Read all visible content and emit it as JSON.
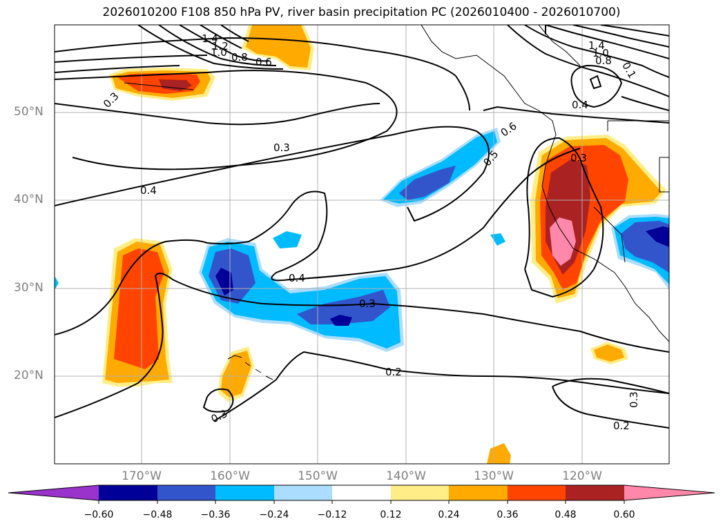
{
  "title": "2026010200 F108 850 hPa PV, river basin precipitation PC (2026010400 - 2026010700)",
  "lat_labels": [
    "50°N",
    "40°N",
    "30°N",
    "20°N"
  ],
  "lon_labels": [
    "170°W",
    "160°W",
    "150°W",
    "140°W",
    "130°W",
    "120°W"
  ],
  "colorbar": {
    "ticks": [
      "−0.60",
      "−0.48",
      "−0.36",
      "−0.24",
      "−0.12",
      "0.12",
      "0.24",
      "0.36",
      "0.48",
      "0.60"
    ],
    "colors": [
      "#9933cc",
      "#000099",
      "#3355cc",
      "#00bbff",
      "#aaddff",
      "#ffffff",
      "#ffee88",
      "#ffaa00",
      "#ff4400",
      "#aa2222",
      "#ff88aa"
    ]
  },
  "contour_labels": [
    "1.4",
    "1.2",
    "1.0",
    "0.8",
    "0.6",
    "0.3",
    "1.4",
    "1.0",
    "0.8",
    "0.1",
    "0.4",
    "0.6",
    "0.5",
    "0.3",
    "0.3",
    "0.4",
    "0.4",
    "0.3",
    "0.2",
    "0.3",
    "0.3",
    "0.2"
  ]
}
